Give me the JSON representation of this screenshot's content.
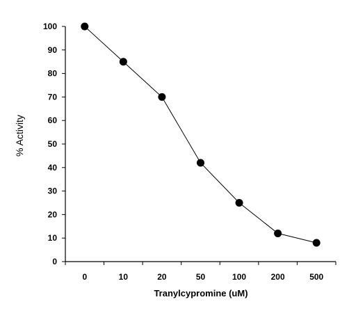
{
  "chart_data": {
    "type": "line",
    "title": "",
    "xlabel": "Tranylcypromine (uM)",
    "ylabel": "% Activity",
    "categories": [
      "0",
      "10",
      "20",
      "50",
      "100",
      "200",
      "500"
    ],
    "series": [
      {
        "values": [
          100,
          85,
          70,
          42,
          25,
          12,
          8
        ]
      }
    ],
    "ylim": [
      0,
      100
    ],
    "yticks": [
      "0",
      "10",
      "20",
      "30",
      "40",
      "50",
      "60",
      "70",
      "80",
      "90",
      "100"
    ],
    "grid": false,
    "marker": "filled-circle",
    "colors": {
      "line": "#000000",
      "marker": "#000000"
    }
  }
}
